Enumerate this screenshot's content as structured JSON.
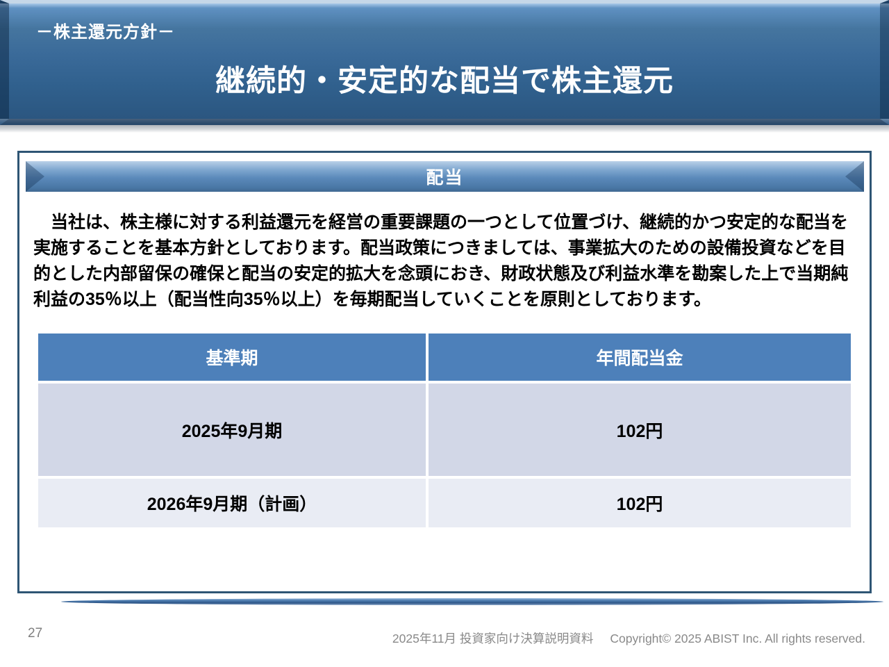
{
  "slide": {
    "header": {
      "eyebrow": "－株主還元方針－",
      "title": "継続的・安定的な配当で株主還元"
    },
    "section": {
      "banner_label": "配当",
      "paragraph": "　当社は、株主様に対する利益還元を経営の重要課題の一つとして位置づけ、継続的かつ安定的な配当を実施することを基本方針としております。配当政策につきましては、事業拡大のための設備投資などを目的とした内部留保の確保と配当の安定的拡大を念頭におき、財政状態及び利益水準を勘案した上で当期純利益の35％以上（配当性向35％以上）を毎期配当していくことを原則としております。",
      "table": {
        "headers": [
          "基準期",
          "年間配当金"
        ],
        "rows": [
          [
            "2025年9月期",
            "102円"
          ],
          [
            "2026年9月期（計画）",
            "102円"
          ]
        ]
      }
    },
    "footer": {
      "page_number": "27",
      "doc_label": "2025年11月 投資家向け決算説明資料",
      "copyright": "Copyright© 2025 ABIST Inc. All rights reserved."
    },
    "colors": {
      "band_blue": "#35618f",
      "box_border": "#2e5574",
      "table_header_blue": "#4d80ba",
      "table_row1_bg": "#d2d7e7",
      "table_row2_bg": "#e9ecf4",
      "footer_gray": "#898989"
    }
  }
}
